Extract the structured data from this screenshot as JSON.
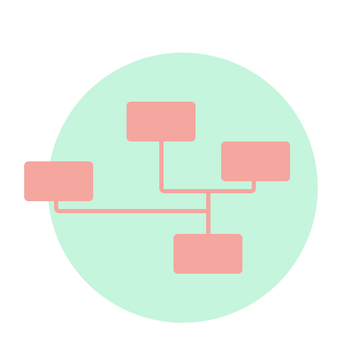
{
  "icon": {
    "name": "hierarchy-network-icon",
    "colors": {
      "background": "#ffffff",
      "circle": "#c5f5dd",
      "node": "#f5a69f",
      "connector": "#f5a69f"
    },
    "nodes": [
      {
        "id": "top-node",
        "label": ""
      },
      {
        "id": "right-node",
        "label": ""
      },
      {
        "id": "left-node",
        "label": ""
      },
      {
        "id": "bottom-node",
        "label": ""
      }
    ]
  }
}
